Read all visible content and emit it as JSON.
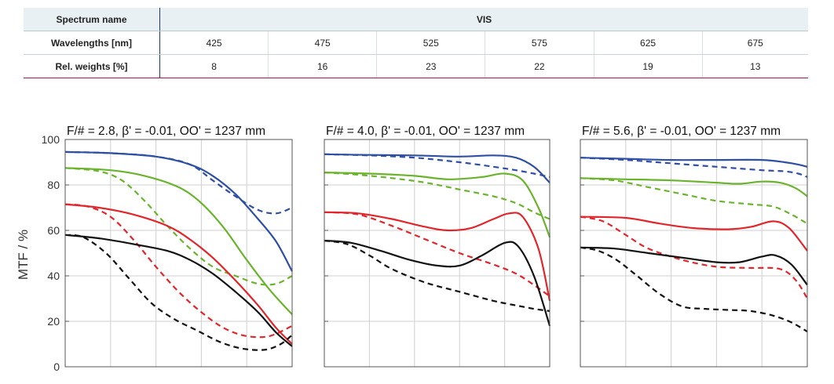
{
  "spectrum_table": {
    "spectrum_name_label": "Spectrum name",
    "spectrum_name_value": "VIS",
    "wavelengths_label": "Wavelengths [nm]",
    "wavelengths": [
      "425",
      "475",
      "525",
      "575",
      "625",
      "675"
    ],
    "weights_label": "Rel. weights [%]",
    "weights": [
      "8",
      "16",
      "23",
      "22",
      "19",
      "13"
    ]
  },
  "y_axis_label": "MTF / %",
  "y_ticks": [
    "0",
    "20",
    "40",
    "60",
    "80",
    "100"
  ],
  "series_colors": {
    "blue": "#2e4fa3",
    "green": "#6ab42d",
    "red": "#e0262b",
    "black": "#111111"
  },
  "chart_data": [
    {
      "type": "line",
      "title": "F/# = 2.8, β' = -0.01, OO' = 1237 mm",
      "ylabel": "MTF / %",
      "ylim": [
        0,
        100
      ],
      "xlim": [
        0,
        1
      ],
      "grid": true,
      "series": [
        {
          "color": "blue",
          "style": "solid",
          "x": [
            0,
            0.2,
            0.4,
            0.55,
            0.65,
            0.75,
            0.85,
            0.93,
            1
          ],
          "y": [
            94.5,
            94,
            92.5,
            89,
            84,
            76,
            65,
            55,
            42
          ]
        },
        {
          "color": "blue",
          "style": "dashed",
          "x": [
            0,
            0.2,
            0.4,
            0.55,
            0.65,
            0.75,
            0.85,
            0.93,
            1
          ],
          "y": [
            94.5,
            94,
            92.5,
            89,
            82,
            75,
            69,
            67.5,
            70
          ]
        },
        {
          "color": "green",
          "style": "solid",
          "x": [
            0,
            0.2,
            0.35,
            0.5,
            0.6,
            0.7,
            0.8,
            0.9,
            1
          ],
          "y": [
            87.5,
            86.5,
            84,
            79,
            72,
            61,
            47,
            34,
            23
          ]
        },
        {
          "color": "green",
          "style": "dashed",
          "x": [
            0,
            0.15,
            0.25,
            0.35,
            0.45,
            0.55,
            0.65,
            0.75,
            0.85,
            0.93,
            1
          ],
          "y": [
            87.5,
            86,
            82,
            73,
            62,
            52,
            44,
            40,
            36.5,
            36.5,
            40
          ]
        },
        {
          "color": "red",
          "style": "solid",
          "x": [
            0,
            0.15,
            0.3,
            0.45,
            0.55,
            0.65,
            0.75,
            0.85,
            0.93,
            1
          ],
          "y": [
            71.5,
            70,
            67,
            62,
            56,
            48,
            38,
            27,
            17,
            10
          ]
        },
        {
          "color": "red",
          "style": "dashed",
          "x": [
            0,
            0.1,
            0.2,
            0.3,
            0.4,
            0.5,
            0.6,
            0.7,
            0.8,
            0.9,
            1
          ],
          "y": [
            71.5,
            70.5,
            66,
            56,
            44,
            33,
            24,
            17,
            13.5,
            13.5,
            18
          ]
        },
        {
          "color": "black",
          "style": "solid",
          "x": [
            0,
            0.15,
            0.3,
            0.45,
            0.55,
            0.65,
            0.75,
            0.85,
            0.93,
            1
          ],
          "y": [
            58,
            56.5,
            54,
            51,
            47,
            41,
            33,
            24,
            15,
            9
          ]
        },
        {
          "color": "black",
          "style": "dashed",
          "x": [
            0,
            0.08,
            0.18,
            0.28,
            0.38,
            0.48,
            0.58,
            0.68,
            0.78,
            0.88,
            0.95,
            1
          ],
          "y": [
            58,
            57,
            50,
            39,
            28,
            21,
            16,
            11,
            8,
            7.5,
            10,
            14
          ]
        }
      ]
    },
    {
      "type": "line",
      "title": "F/# = 4.0, β' = -0.01, OO' = 1237 mm",
      "ylabel": "MTF / %",
      "ylim": [
        0,
        100
      ],
      "xlim": [
        0,
        1
      ],
      "grid": true,
      "series": [
        {
          "color": "blue",
          "style": "solid",
          "x": [
            0,
            0.2,
            0.4,
            0.6,
            0.75,
            0.85,
            0.93,
            1
          ],
          "y": [
            93.5,
            93.2,
            93,
            92.5,
            93,
            92,
            88,
            81
          ]
        },
        {
          "color": "blue",
          "style": "dashed",
          "x": [
            0,
            0.2,
            0.4,
            0.6,
            0.75,
            0.85,
            0.93,
            1
          ],
          "y": [
            93.5,
            93,
            92,
            90,
            88,
            86.5,
            85,
            83.5
          ]
        },
        {
          "color": "green",
          "style": "solid",
          "x": [
            0,
            0.2,
            0.4,
            0.55,
            0.7,
            0.8,
            0.88,
            0.95,
            1
          ],
          "y": [
            85.5,
            85,
            84,
            82.5,
            83.5,
            85,
            82,
            70,
            57
          ]
        },
        {
          "color": "green",
          "style": "dashed",
          "x": [
            0,
            0.15,
            0.3,
            0.45,
            0.6,
            0.75,
            0.85,
            0.93,
            1
          ],
          "y": [
            85.5,
            84.5,
            83,
            81,
            78,
            75,
            72,
            68,
            65
          ]
        },
        {
          "color": "red",
          "style": "solid",
          "x": [
            0,
            0.15,
            0.3,
            0.45,
            0.55,
            0.65,
            0.75,
            0.82,
            0.88,
            0.95,
            1
          ],
          "y": [
            68,
            67.5,
            65,
            61.5,
            60,
            61,
            65,
            67.5,
            66,
            52,
            29
          ]
        },
        {
          "color": "red",
          "style": "dashed",
          "x": [
            0,
            0.15,
            0.3,
            0.45,
            0.6,
            0.75,
            0.85,
            0.93,
            1
          ],
          "y": [
            68,
            67,
            62,
            56,
            50,
            45,
            41,
            36,
            31
          ]
        },
        {
          "color": "black",
          "style": "solid",
          "x": [
            0,
            0.12,
            0.25,
            0.38,
            0.5,
            0.6,
            0.7,
            0.8,
            0.86,
            0.93,
            1
          ],
          "y": [
            55.5,
            54.5,
            51,
            47,
            44.5,
            44.5,
            49,
            54.5,
            53,
            40,
            18
          ]
        },
        {
          "color": "black",
          "style": "dashed",
          "x": [
            0,
            0.1,
            0.2,
            0.3,
            0.45,
            0.6,
            0.75,
            0.85,
            0.93,
            1
          ],
          "y": [
            55.5,
            54,
            49,
            43,
            37,
            33,
            29,
            27,
            25.5,
            24.5
          ]
        }
      ]
    },
    {
      "type": "line",
      "title": "F/# = 5.6, β' = -0.01, OO' = 1237 mm",
      "ylabel": "MTF / %",
      "ylim": [
        0,
        100
      ],
      "xlim": [
        0,
        1
      ],
      "grid": true,
      "series": [
        {
          "color": "blue",
          "style": "solid",
          "x": [
            0,
            0.2,
            0.4,
            0.6,
            0.8,
            0.9,
            0.96,
            1
          ],
          "y": [
            92,
            91.5,
            91,
            91,
            91,
            90,
            89,
            88
          ]
        },
        {
          "color": "blue",
          "style": "dashed",
          "x": [
            0,
            0.2,
            0.4,
            0.6,
            0.8,
            0.9,
            0.96,
            1
          ],
          "y": [
            92,
            91,
            89.5,
            88,
            86.5,
            86,
            85,
            83.5
          ]
        },
        {
          "color": "green",
          "style": "solid",
          "x": [
            0,
            0.2,
            0.4,
            0.6,
            0.7,
            0.8,
            0.88,
            0.95,
            1
          ],
          "y": [
            83,
            82.5,
            82,
            81,
            80.5,
            81.5,
            81,
            78.5,
            75
          ]
        },
        {
          "color": "green",
          "style": "dashed",
          "x": [
            0,
            0.15,
            0.3,
            0.45,
            0.6,
            0.75,
            0.85,
            0.93,
            1
          ],
          "y": [
            83,
            82,
            79,
            76,
            73,
            71.5,
            70.5,
            67,
            63
          ]
        },
        {
          "color": "red",
          "style": "solid",
          "x": [
            0,
            0.2,
            0.35,
            0.5,
            0.65,
            0.75,
            0.85,
            0.92,
            1
          ],
          "y": [
            66,
            65.5,
            63,
            61,
            60.5,
            61.5,
            64,
            61,
            51
          ]
        },
        {
          "color": "red",
          "style": "dashed",
          "x": [
            0,
            0.1,
            0.2,
            0.3,
            0.45,
            0.6,
            0.75,
            0.88,
            0.95,
            1
          ],
          "y": [
            66,
            64,
            58,
            52,
            47,
            44,
            43.5,
            43,
            38,
            30
          ]
        },
        {
          "color": "black",
          "style": "solid",
          "x": [
            0,
            0.15,
            0.3,
            0.45,
            0.6,
            0.7,
            0.8,
            0.86,
            0.93,
            1
          ],
          "y": [
            52.5,
            52,
            50,
            48,
            46,
            46,
            48.5,
            49,
            45,
            36
          ]
        },
        {
          "color": "black",
          "style": "dashed",
          "x": [
            0,
            0.08,
            0.16,
            0.25,
            0.35,
            0.45,
            0.55,
            0.65,
            0.75,
            0.85,
            0.93,
            1
          ],
          "y": [
            52.5,
            51,
            47,
            40,
            32,
            26.5,
            25.5,
            25,
            24.5,
            22.5,
            19.5,
            15.5
          ]
        }
      ]
    }
  ]
}
